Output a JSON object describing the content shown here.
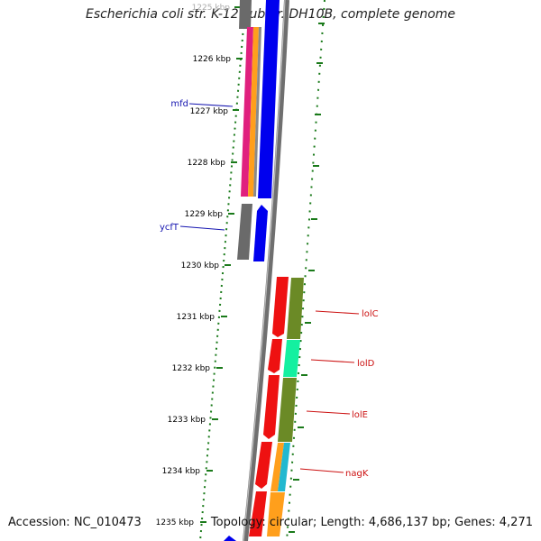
{
  "title": "Escherichia coli str. K-12 substr. DH10B, complete genome",
  "accession_text": "Accession: NC_010473",
  "summary_text": "Topology: circular; Length: 4,686,137 bp; Genes: 4,271",
  "colors": {
    "backbone": "#808080",
    "tick": "#1a7a1a",
    "forward_label": "#1515b0",
    "reverse_label": "#cc1111"
  },
  "ruler": {
    "unit": "kbp",
    "ticks": [
      "1225 kbp",
      "1226 kbp",
      "1227 kbp",
      "1228 kbp",
      "1229 kbp",
      "1230 kbp",
      "1231 kbp",
      "1232 kbp",
      "1233 kbp",
      "1234 kbp",
      "1235 kbp"
    ]
  },
  "genes": [
    {
      "name": "mfd",
      "strand": "forward"
    },
    {
      "name": "ycfT",
      "strand": "forward"
    },
    {
      "name": "lolC",
      "strand": "reverse"
    },
    {
      "name": "lolD",
      "strand": "reverse"
    },
    {
      "name": "lolE",
      "strand": "reverse"
    },
    {
      "name": "nagK",
      "strand": "reverse"
    }
  ]
}
